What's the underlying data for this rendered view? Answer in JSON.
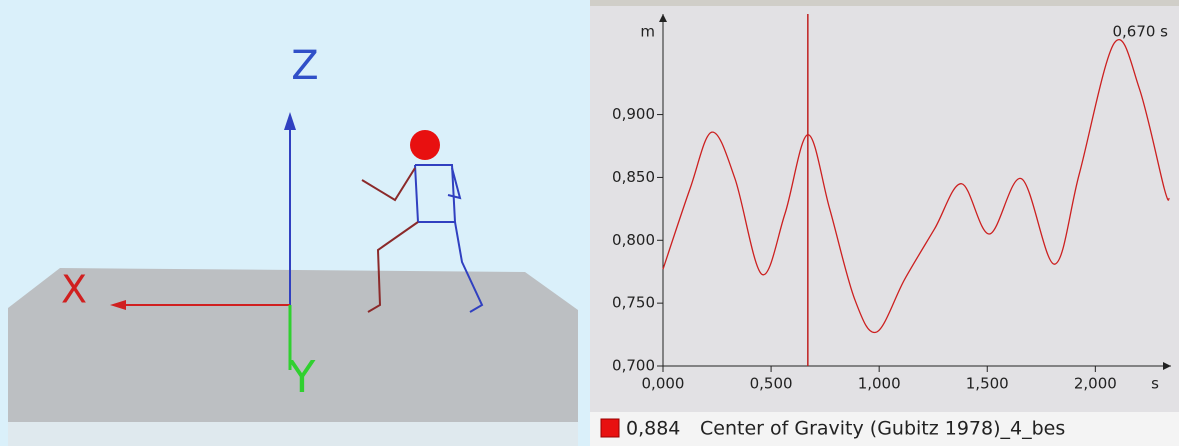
{
  "scene": {
    "axis_labels": [
      "Z",
      "X",
      "Y"
    ]
  },
  "chart_data": {
    "type": "line",
    "x": [
      0,
      0.125,
      0.226,
      0.333,
      0.457,
      0.564,
      0.67,
      0.771,
      0.887,
      0.988,
      1.118,
      1.256,
      1.381,
      1.51,
      1.658,
      1.811,
      1.926,
      2.088,
      2.203,
      2.319,
      2.342
    ],
    "series": [
      {
        "name": "Center of Gravity (Gubitz 1978)_4_bes",
        "color": "#cc2020",
        "values": [
          0.777,
          0.841,
          0.886,
          0.849,
          0.773,
          0.821,
          0.884,
          0.825,
          0.753,
          0.727,
          0.769,
          0.809,
          0.845,
          0.805,
          0.849,
          0.781,
          0.853,
          0.957,
          0.921,
          0.841,
          0.833
        ]
      }
    ],
    "xlim": [
      0,
      2.35
    ],
    "ylim": [
      0.7,
      0.98
    ],
    "xticks": [
      {
        "value": 0,
        "label": "0,000"
      },
      {
        "value": 0.5,
        "label": "0,500"
      },
      {
        "value": 1,
        "label": "1,000"
      },
      {
        "value": 1.5,
        "label": "1,500"
      },
      {
        "value": 2,
        "label": "2,000"
      }
    ],
    "yticks": [
      {
        "value": 0.7,
        "label": "0,700"
      },
      {
        "value": 0.75,
        "label": "0,750"
      },
      {
        "value": 0.8,
        "label": "0,800"
      },
      {
        "value": 0.85,
        "label": "0,850"
      },
      {
        "value": 0.9,
        "label": "0,900"
      }
    ],
    "y_label": "m",
    "x_label": "s",
    "cursor": {
      "value": 0.67,
      "label": "0,670 s"
    },
    "legend_value": "0,884"
  }
}
